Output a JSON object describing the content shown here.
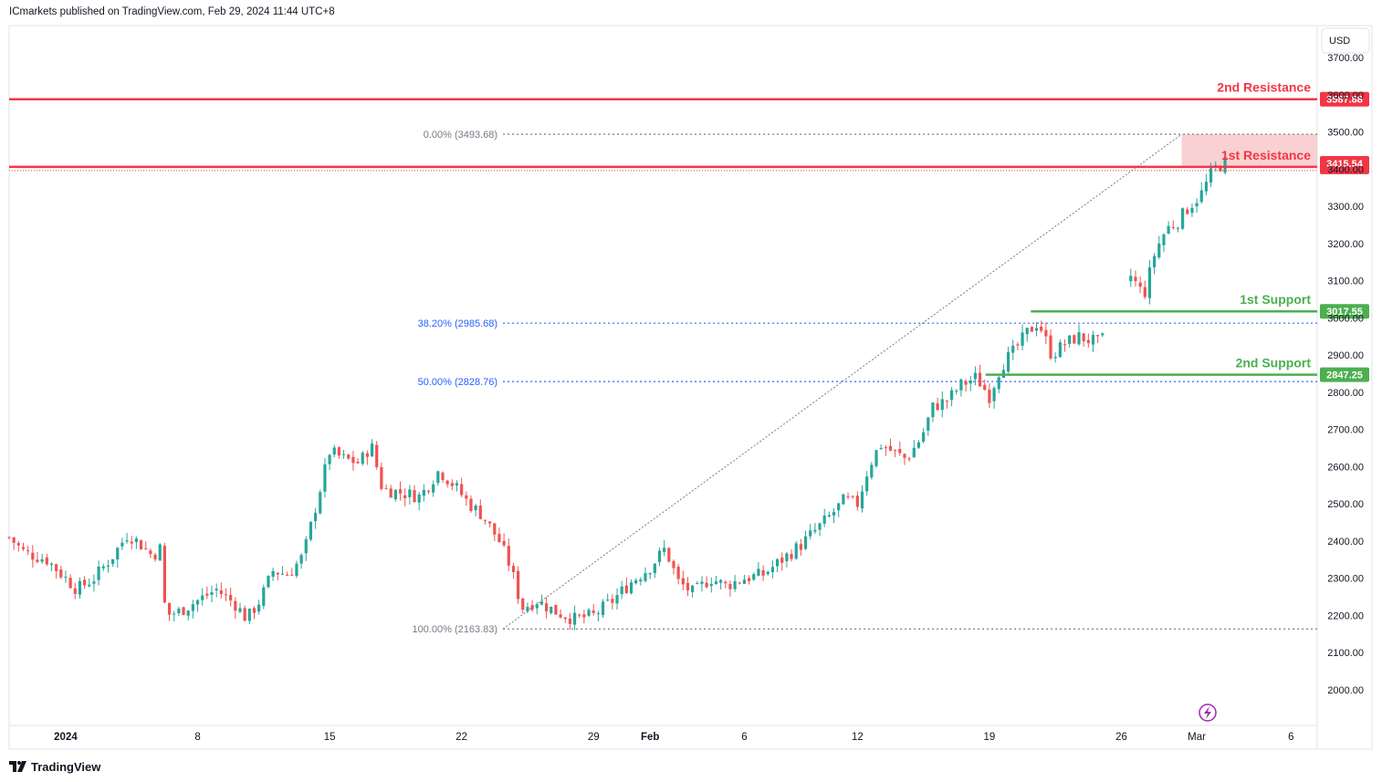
{
  "header": {
    "text": "ICmarkets published on TradingView.com, Feb 29, 2024 11:44 UTC+8"
  },
  "footer": {
    "brand": "TradingView"
  },
  "currency_button": "USD",
  "colors": {
    "up": "#26a69a",
    "down": "#ef5350",
    "resistance": "#f23645",
    "support": "#4caf50",
    "fib_blue": "#2962ff",
    "fib_grey": "#787b86",
    "zone": "#f7c1c4"
  },
  "chart_data": {
    "type": "candlestick",
    "symbol_currency": "USD",
    "y_range": [
      1950,
      3760
    ],
    "y_ticks": [
      {
        "value": 3700,
        "label": "3700.00"
      },
      {
        "value": 3600,
        "label": "3600.00"
      },
      {
        "value": 3500,
        "label": "3500.00"
      },
      {
        "value": 3400,
        "label": "3400.00"
      },
      {
        "value": 3300,
        "label": "3300.00"
      },
      {
        "value": 3200,
        "label": "3200.00"
      },
      {
        "value": 3100,
        "label": "3100.00"
      },
      {
        "value": 3000,
        "label": "3000.00"
      },
      {
        "value": 2900,
        "label": "2900.00"
      },
      {
        "value": 2800,
        "label": "2800.00"
      },
      {
        "value": 2700,
        "label": "2700.00"
      },
      {
        "value": 2600,
        "label": "2600.00"
      },
      {
        "value": 2500,
        "label": "2500.00"
      },
      {
        "value": 2400,
        "label": "2400.00"
      },
      {
        "value": 2300,
        "label": "2300.00"
      },
      {
        "value": 2200,
        "label": "2200.00"
      },
      {
        "value": 2100,
        "label": "2100.00"
      },
      {
        "value": 2000,
        "label": "2000.00"
      }
    ],
    "x_range_days": [
      -2,
      67
    ],
    "x_ticks": [
      {
        "label": "2024",
        "day": 1,
        "bold": true
      },
      {
        "label": "8",
        "day": 8
      },
      {
        "label": "15",
        "day": 15
      },
      {
        "label": "22",
        "day": 22
      },
      {
        "label": "29",
        "day": 29
      },
      {
        "label": "Feb",
        "day": 32,
        "bold": true
      },
      {
        "label": "6",
        "day": 37
      },
      {
        "label": "12",
        "day": 43
      },
      {
        "label": "19",
        "day": 50
      },
      {
        "label": "26",
        "day": 57
      },
      {
        "label": "Mar",
        "day": 61
      },
      {
        "label": "6",
        "day": 66
      }
    ],
    "levels": [
      {
        "name": "2nd Resistance",
        "value": 3587.88,
        "label": "3587.88",
        "type": "resistance"
      },
      {
        "name": "1st Resistance",
        "value": 3406.07,
        "label": "3406.07",
        "type": "resistance"
      },
      {
        "name": "1st Support",
        "value": 3017.55,
        "label": "3017.55",
        "type": "support"
      },
      {
        "name": "2nd Support",
        "value": 2847.25,
        "label": "2847.25",
        "type": "support"
      }
    ],
    "resistance_zone": {
      "top": 3493.68,
      "bottom": 3406.07,
      "upper_label": "3415.54",
      "upper_value": 3415.54
    },
    "fibonacci": [
      {
        "label": "0.00% (3493.68)",
        "value": 3493.68,
        "color": "grey"
      },
      {
        "label": "38.20% (2985.68)",
        "value": 2985.68,
        "color": "blue"
      },
      {
        "label": "50.00% (2828.76)",
        "value": 2828.76,
        "color": "blue"
      },
      {
        "label": "100.00% (2163.83)",
        "value": 2163.83,
        "color": "grey"
      }
    ],
    "fib_trend": {
      "from": {
        "day": 24.2,
        "value": 2163.83
      },
      "to": {
        "day": 60.2,
        "value": 3493.68
      }
    },
    "price_path": [
      [
        -2,
        2410
      ],
      [
        -1.2,
        2370
      ],
      [
        0,
        2350
      ],
      [
        1,
        2300
      ],
      [
        1.6,
        2270
      ],
      [
        2.5,
        2300
      ],
      [
        3.5,
        2360
      ],
      [
        4.3,
        2420
      ],
      [
        5,
        2390
      ],
      [
        5.6,
        2360
      ],
      [
        6,
        2380
      ],
      [
        6.3,
        2200
      ],
      [
        7,
        2210
      ],
      [
        8,
        2240
      ],
      [
        9,
        2270
      ],
      [
        10,
        2230
      ],
      [
        10.6,
        2190
      ],
      [
        11.3,
        2240
      ],
      [
        12,
        2320
      ],
      [
        12.8,
        2310
      ],
      [
        13.6,
        2360
      ],
      [
        14.2,
        2480
      ],
      [
        15,
        2640
      ],
      [
        15.8,
        2620
      ],
      [
        16.6,
        2610
      ],
      [
        17.2,
        2660
      ],
      [
        17.8,
        2540
      ],
      [
        18.8,
        2530
      ],
      [
        19.8,
        2520
      ],
      [
        20.8,
        2590
      ],
      [
        21.6,
        2550
      ],
      [
        22.4,
        2500
      ],
      [
        23.1,
        2470
      ],
      [
        24,
        2400
      ],
      [
        24.6,
        2330
      ],
      [
        25.2,
        2220
      ],
      [
        26,
        2240
      ],
      [
        27,
        2210
      ],
      [
        28,
        2190
      ],
      [
        29,
        2200
      ],
      [
        30,
        2240
      ],
      [
        31,
        2290
      ],
      [
        32,
        2330
      ],
      [
        32.8,
        2380
      ],
      [
        33.5,
        2290
      ],
      [
        34.3,
        2260
      ],
      [
        35.2,
        2300
      ],
      [
        36,
        2280
      ],
      [
        37,
        2300
      ],
      [
        38,
        2310
      ],
      [
        39,
        2350
      ],
      [
        40,
        2390
      ],
      [
        40.8,
        2430
      ],
      [
        41.6,
        2470
      ],
      [
        42.3,
        2510
      ],
      [
        43,
        2500
      ],
      [
        43.6,
        2600
      ],
      [
        44.2,
        2660
      ],
      [
        44.9,
        2640
      ],
      [
        45.6,
        2620
      ],
      [
        46.4,
        2680
      ],
      [
        47,
        2760
      ],
      [
        47.8,
        2780
      ],
      [
        48.5,
        2820
      ],
      [
        49.3,
        2840
      ],
      [
        50,
        2790
      ],
      [
        50.6,
        2870
      ],
      [
        51.3,
        2910
      ],
      [
        52,
        2960
      ],
      [
        52.6,
        2990
      ],
      [
        53.3,
        2900
      ],
      [
        54,
        2930
      ],
      [
        54.7,
        2950
      ],
      [
        55.3,
        2940
      ],
      [
        55.9,
        2930
      ],
      [
        57.4,
        3120
      ],
      [
        58.2,
        3060
      ],
      [
        58.8,
        3180
      ],
      [
        59.4,
        3240
      ],
      [
        60,
        3260
      ],
      [
        60.6,
        3300
      ],
      [
        61.2,
        3330
      ],
      [
        61.9,
        3400
      ],
      [
        62.6,
        3420
      ]
    ],
    "gaps_days": [
      [
        56.2,
        57.4
      ]
    ],
    "candle_step_days": 0.25
  }
}
